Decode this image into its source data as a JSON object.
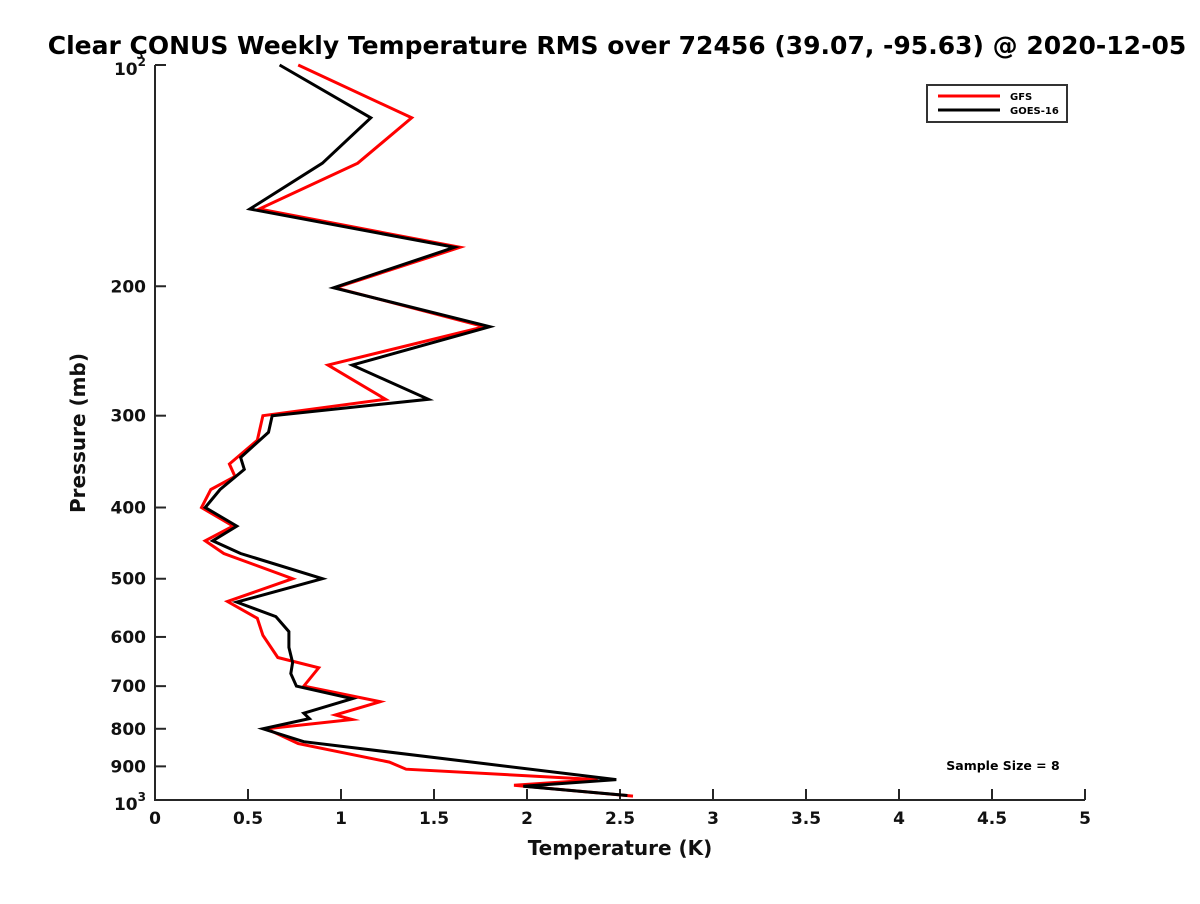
{
  "chart_data": {
    "type": "line",
    "title": "Clear ÇONUS Weekly Temperature RMS over 72456 (39.07, -95.63) @ 2020-12-05",
    "xlabel": "Temperature (K)",
    "ylabel": "Pressure (mb)",
    "xlim": [
      0,
      5
    ],
    "ylim": [
      100,
      1000
    ],
    "x_scale": "linear",
    "y_scale": "log",
    "y_inverted": true,
    "grid": false,
    "x_ticks": [
      0,
      0.5,
      1,
      1.5,
      2,
      2.5,
      3,
      3.5,
      4,
      4.5,
      5
    ],
    "x_tick_labels": [
      "0",
      "0.5",
      "1",
      "1.5",
      "2",
      "2.5",
      "3",
      "3.5",
      "4",
      "4.5",
      "5"
    ],
    "y_ticks": [
      {
        "value": 100,
        "label": "10",
        "sup": "2"
      },
      {
        "value": 200,
        "label": "200"
      },
      {
        "value": 300,
        "label": "300"
      },
      {
        "value": 400,
        "label": "400"
      },
      {
        "value": 500,
        "label": "500"
      },
      {
        "value": 600,
        "label": "600"
      },
      {
        "value": 700,
        "label": "700"
      },
      {
        "value": 800,
        "label": "800"
      },
      {
        "value": 900,
        "label": "900"
      },
      {
        "value": 1000,
        "label": "10",
        "sup": "3"
      }
    ],
    "legend_position": "upper right",
    "annotation": "Sample Size = 8",
    "series": [
      {
        "name": "GFS",
        "color": "#ff0000",
        "points_format": "[temperature_rms_K, pressure_mb]",
        "points": [
          [
            0.77,
            100
          ],
          [
            1.38,
            118
          ],
          [
            1.09,
            136
          ],
          [
            0.56,
            157
          ],
          [
            1.64,
            177
          ],
          [
            0.97,
            201
          ],
          [
            1.77,
            227
          ],
          [
            0.93,
            256
          ],
          [
            1.24,
            285
          ],
          [
            0.58,
            300
          ],
          [
            0.55,
            324
          ],
          [
            0.4,
            349
          ],
          [
            0.43,
            363
          ],
          [
            0.3,
            378
          ],
          [
            0.25,
            400
          ],
          [
            0.42,
            424
          ],
          [
            0.27,
            444
          ],
          [
            0.37,
            462
          ],
          [
            0.74,
            500
          ],
          [
            0.39,
            537
          ],
          [
            0.55,
            566
          ],
          [
            0.58,
            597
          ],
          [
            0.66,
            640
          ],
          [
            0.88,
            661
          ],
          [
            0.8,
            700
          ],
          [
            1.21,
            735
          ],
          [
            0.97,
            766
          ],
          [
            1.06,
            777
          ],
          [
            0.6,
            800
          ],
          [
            0.77,
            838
          ],
          [
            1.26,
            888
          ],
          [
            1.35,
            908
          ],
          [
            2.38,
            938
          ],
          [
            1.93,
            955
          ],
          [
            2.57,
            988
          ]
        ]
      },
      {
        "name": "GOES-16",
        "color": "#000000",
        "points_format": "[temperature_rms_K, pressure_mb]",
        "points": [
          [
            0.67,
            100
          ],
          [
            1.16,
            118
          ],
          [
            0.9,
            136
          ],
          [
            0.51,
            157
          ],
          [
            1.61,
            177
          ],
          [
            0.96,
            201
          ],
          [
            1.8,
            227
          ],
          [
            1.06,
            256
          ],
          [
            1.47,
            285
          ],
          [
            0.63,
            300
          ],
          [
            0.61,
            316
          ],
          [
            0.46,
            342
          ],
          [
            0.48,
            355
          ],
          [
            0.35,
            378
          ],
          [
            0.27,
            400
          ],
          [
            0.44,
            424
          ],
          [
            0.31,
            444
          ],
          [
            0.46,
            462
          ],
          [
            0.9,
            500
          ],
          [
            0.44,
            538
          ],
          [
            0.65,
            563
          ],
          [
            0.72,
            590
          ],
          [
            0.72,
            620
          ],
          [
            0.74,
            650
          ],
          [
            0.73,
            673
          ],
          [
            0.76,
            700
          ],
          [
            1.06,
            728
          ],
          [
            0.8,
            762
          ],
          [
            0.83,
            775
          ],
          [
            0.58,
            800
          ],
          [
            0.8,
            833
          ],
          [
            2.48,
            938
          ],
          [
            1.98,
            958
          ],
          [
            2.54,
            986
          ]
        ]
      }
    ]
  }
}
